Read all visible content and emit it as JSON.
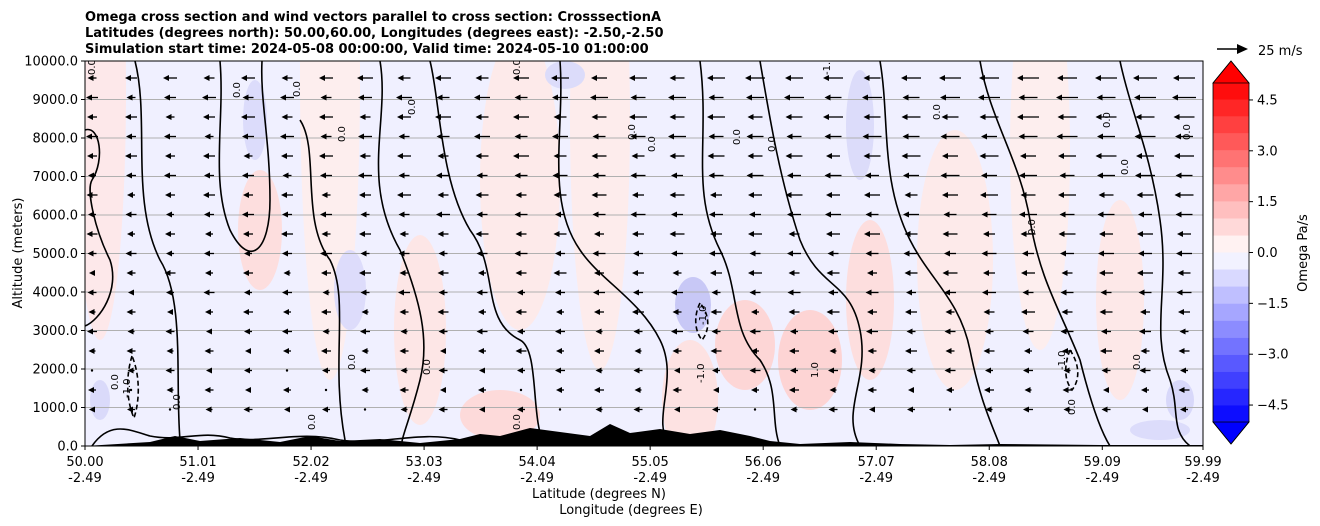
{
  "chart_data": {
    "type": "cross_section_contour",
    "title_lines": [
      "Omega cross section and wind vectors parallel to cross section: CrosssectionA",
      "Latitudes (degrees north): 50.00,60.00, Longitudes (degrees east): -2.50,-2.50",
      "Simulation start time: 2024-05-08 00:00:00, Valid time: 2024-05-10 01:00:00"
    ],
    "ylabel": "Altitude (meters)",
    "xlabel_lines": [
      "Latitude (degrees N)",
      "Longitude (degrees E)"
    ],
    "ylim": [
      0,
      10000
    ],
    "xlim": [
      50.0,
      59.99
    ],
    "y_ticks": [
      "0.0",
      "1000.0",
      "2000.0",
      "3000.0",
      "4000.0",
      "5000.0",
      "6000.0",
      "7000.0",
      "8000.0",
      "9000.0",
      "10000.0"
    ],
    "y_tick_values": [
      0,
      1000,
      2000,
      3000,
      4000,
      5000,
      6000,
      7000,
      8000,
      9000,
      10000
    ],
    "x_tick_values": [
      50.0,
      51.01,
      52.02,
      53.03,
      54.04,
      55.05,
      56.06,
      57.07,
      58.08,
      59.09,
      59.99
    ],
    "x_ticks_lat": [
      "50.00",
      "51.01",
      "52.02",
      "53.03",
      "54.04",
      "55.05",
      "56.06",
      "57.07",
      "58.08",
      "59.09",
      "59.99"
    ],
    "x_ticks_lon": [
      "-2.49",
      "-2.49",
      "-2.49",
      "-2.49",
      "-2.49",
      "-2.49",
      "-2.49",
      "-2.49",
      "-2.49",
      "-2.49",
      "-2.49"
    ],
    "grid": "horizontal",
    "colorbar": {
      "label": "Omega Pa/s",
      "ticks": [
        "4.5",
        "3.0",
        "1.5",
        "0.0",
        "−1.5",
        "−3.0",
        "−4.5"
      ],
      "tick_values": [
        4.5,
        3.0,
        1.5,
        0.0,
        -1.5,
        -3.0,
        -4.5
      ],
      "range": [
        -5,
        5
      ],
      "levels": 20,
      "extend": "both",
      "min_color": "#0000ff",
      "max_color": "#ff0000",
      "center_color": "#ffffff"
    },
    "reference_vector": {
      "label": "25 m/s"
    },
    "contour_labels": [
      "0.0",
      "-1.0",
      "1.0"
    ],
    "vector_direction": "mostly southward (negative) aloft",
    "background_color": "#f0f0ff",
    "terrain_color": "#000000"
  }
}
